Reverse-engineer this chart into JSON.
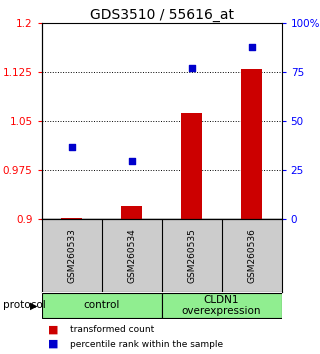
{
  "title": "GDS3510 / 55616_at",
  "samples": [
    "GSM260533",
    "GSM260534",
    "GSM260535",
    "GSM260536"
  ],
  "bar_values": [
    0.902,
    0.921,
    1.062,
    1.13
  ],
  "dot_values": [
    37,
    30,
    77,
    88
  ],
  "ylim_left": [
    0.9,
    1.2
  ],
  "ylim_right": [
    0,
    100
  ],
  "yticks_left": [
    0.9,
    0.975,
    1.05,
    1.125,
    1.2
  ],
  "yticks_right": [
    0,
    25,
    50,
    75,
    100
  ],
  "ytick_labels_left": [
    "0.9",
    "0.975",
    "1.05",
    "1.125",
    "1.2"
  ],
  "ytick_labels_right": [
    "0",
    "25",
    "50",
    "75",
    "100%"
  ],
  "bar_color": "#cc0000",
  "dot_color": "#0000cc",
  "bar_base": 0.9,
  "groups": [
    {
      "label": "control",
      "indices": [
        0,
        1
      ],
      "color": "#90ee90"
    },
    {
      "label": "CLDN1\noverexpression",
      "indices": [
        2,
        3
      ],
      "color": "#90ee90"
    }
  ],
  "protocol_label": "protocol",
  "legend_bar_label": "transformed count",
  "legend_dot_label": "percentile rank within the sample",
  "title_fontsize": 10,
  "tick_fontsize": 7.5,
  "sample_fontsize": 6.5,
  "group_fontsize": 7.5,
  "legend_fontsize": 6.5,
  "bar_color_hex": "#cc0000",
  "dot_color_hex": "#0000cc",
  "sample_box_color": "#cccccc",
  "background_color": "#ffffff",
  "bar_width": 0.35
}
